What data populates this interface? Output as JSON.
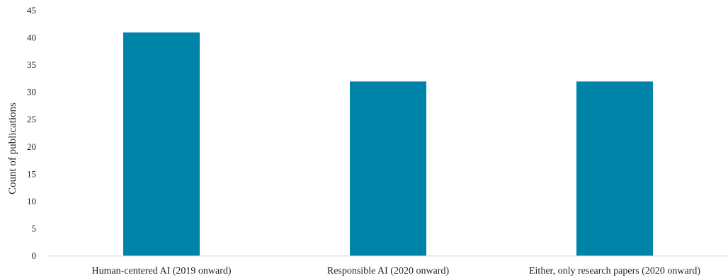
{
  "chart_data": {
    "type": "bar",
    "categories": [
      "Human-centered AI (2019 onward)",
      "Responsible AI (2020 onward)",
      "Either, only research papers (2020 onward)"
    ],
    "values": [
      41,
      32,
      32
    ],
    "title": "",
    "xlabel": "",
    "ylabel": "Count of publications",
    "ylim": [
      0,
      45
    ],
    "yticks": [
      0,
      5,
      10,
      15,
      20,
      25,
      30,
      35,
      40,
      45
    ],
    "grid": false,
    "legend": "none",
    "colors": {
      "bar": "#0083a8",
      "axis": "#d9d9d9"
    }
  }
}
